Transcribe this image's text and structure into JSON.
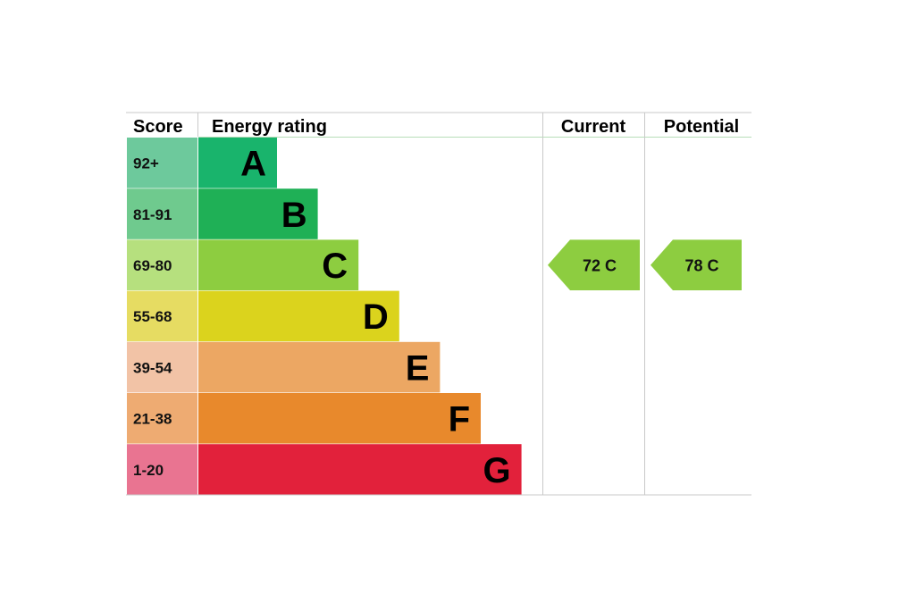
{
  "chart_data": {
    "type": "bar",
    "headers": {
      "score": "Score",
      "rating": "Energy rating",
      "current": "Current",
      "potential": "Potential"
    },
    "bands": [
      {
        "letter": "A",
        "score": "92+",
        "color": "#19b46c",
        "score_color": "#6dc99c"
      },
      {
        "letter": "B",
        "score": "81-91",
        "color": "#1fb056",
        "score_color": "#6fca8e"
      },
      {
        "letter": "C",
        "score": "69-80",
        "color": "#8dcd40",
        "score_color": "#b6e07e"
      },
      {
        "letter": "D",
        "score": "55-68",
        "color": "#dbd31d",
        "score_color": "#e6dc62"
      },
      {
        "letter": "E",
        "score": "39-54",
        "color": "#eca763",
        "score_color": "#f2c3a6"
      },
      {
        "letter": "F",
        "score": "21-38",
        "color": "#e8892c",
        "score_color": "#eeab72"
      },
      {
        "letter": "G",
        "score": "1-20",
        "color": "#e2213b",
        "score_color": "#e97491"
      }
    ],
    "current": {
      "value": 72,
      "band": "C",
      "label": "72  C",
      "color": "#8dcd40"
    },
    "potential": {
      "value": 78,
      "band": "C",
      "label": "78  C",
      "color": "#8dcd40"
    }
  }
}
